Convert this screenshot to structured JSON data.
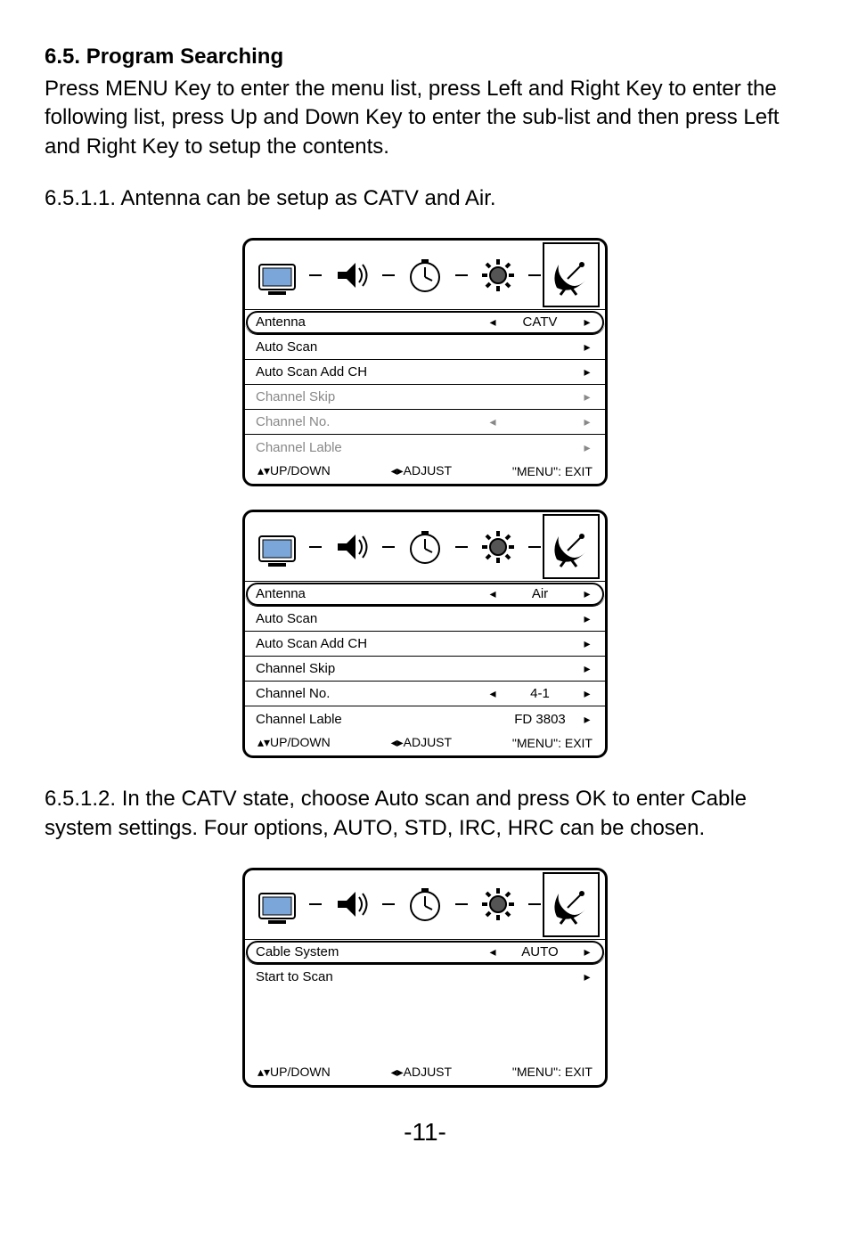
{
  "heading": "6.5. Program Searching",
  "para1": "Press MENU Key to enter the menu list, press Left and Right Key to enter the following list, press Up and Down Key to enter the sub-list and then press Left and Right Key to setup the contents.",
  "step1": "6.5.1.1. Antenna can be setup as CATV and Air.",
  "step2": "6.5.1.2. In the CATV state, choose Auto scan and press OK to enter Cable system settings. Four options, AUTO, STD, IRC, HRC can be chosen.",
  "footer": {
    "updown": "▴▾UP/DOWN",
    "adjust": "◂▸ADJUST",
    "exit": "\"MENU\": EXIT"
  },
  "menu1": {
    "rows": [
      {
        "label": "Antenna",
        "val": "CATV",
        "sel": true,
        "dim": false,
        "la": "◂",
        "ra": "▸"
      },
      {
        "label": "Auto Scan",
        "val": "",
        "sel": false,
        "dim": false,
        "la": "",
        "ra": "▸"
      },
      {
        "label": "Auto Scan Add CH",
        "val": "",
        "sel": false,
        "dim": false,
        "la": "",
        "ra": "▸"
      },
      {
        "label": "Channel Skip",
        "val": "",
        "sel": false,
        "dim": true,
        "la": "",
        "ra": "▸"
      },
      {
        "label": "Channel No.",
        "val": "",
        "sel": false,
        "dim": true,
        "la": "◂",
        "ra": "▸"
      },
      {
        "label": "Channel Lable",
        "val": "",
        "sel": false,
        "dim": true,
        "la": "",
        "ra": "▸"
      }
    ]
  },
  "menu2": {
    "rows": [
      {
        "label": "Antenna",
        "val": "Air",
        "sel": true,
        "dim": false,
        "la": "◂",
        "ra": "▸"
      },
      {
        "label": "Auto Scan",
        "val": "",
        "sel": false,
        "dim": false,
        "la": "",
        "ra": "▸"
      },
      {
        "label": "Auto Scan Add CH",
        "val": "",
        "sel": false,
        "dim": false,
        "la": "",
        "ra": "▸"
      },
      {
        "label": "Channel Skip",
        "val": "",
        "sel": false,
        "dim": false,
        "la": "",
        "ra": "▸"
      },
      {
        "label": "Channel No.",
        "val": "4-1",
        "sel": false,
        "dim": false,
        "la": "◂",
        "ra": "▸"
      },
      {
        "label": "Channel Lable",
        "val": "FD 3803",
        "sel": false,
        "dim": false,
        "la": "",
        "ra": "▸"
      }
    ]
  },
  "menu3": {
    "rows": [
      {
        "label": "Cable System",
        "val": "AUTO",
        "sel": true,
        "dim": false,
        "la": "◂",
        "ra": "▸"
      },
      {
        "label": "Start to Scan",
        "val": "",
        "sel": false,
        "dim": false,
        "la": "",
        "ra": "▸"
      }
    ]
  },
  "pagenum": "-11-",
  "colors": {
    "text": "#000000",
    "dim": "#888888",
    "bg": "#ffffff"
  }
}
